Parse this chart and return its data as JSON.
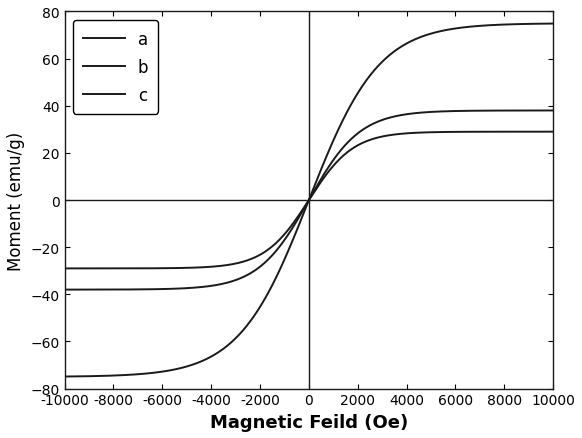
{
  "title": "",
  "xlabel": "Magnetic Feild (Oe)",
  "ylabel": "Moment (emu/g)",
  "xlim": [
    -10000,
    10000
  ],
  "ylim": [
    -80,
    80
  ],
  "xticks": [
    -10000,
    -8000,
    -6000,
    -4000,
    -2000,
    0,
    2000,
    4000,
    6000,
    8000,
    10000
  ],
  "yticks": [
    -80,
    -60,
    -40,
    -20,
    0,
    20,
    40,
    60,
    80
  ],
  "curves": [
    {
      "label": "a",
      "Ms": 75.0,
      "k": 0.00035,
      "color": "#1a1a1a",
      "lw": 1.4
    },
    {
      "label": "b",
      "Ms": 38.0,
      "k": 0.00048,
      "color": "#1a1a1a",
      "lw": 1.4
    },
    {
      "label": "c",
      "Ms": 29.0,
      "k": 0.00055,
      "color": "#1a1a1a",
      "lw": 1.4
    }
  ],
  "vline_x": 0,
  "hline_y": 0,
  "line_color": "#1a1a1a",
  "line_lw": 1.0,
  "legend_loc": "upper left",
  "background_color": "#ffffff",
  "xlabel_fontsize": 13,
  "ylabel_fontsize": 12,
  "tick_fontsize": 10,
  "legend_fontsize": 12
}
